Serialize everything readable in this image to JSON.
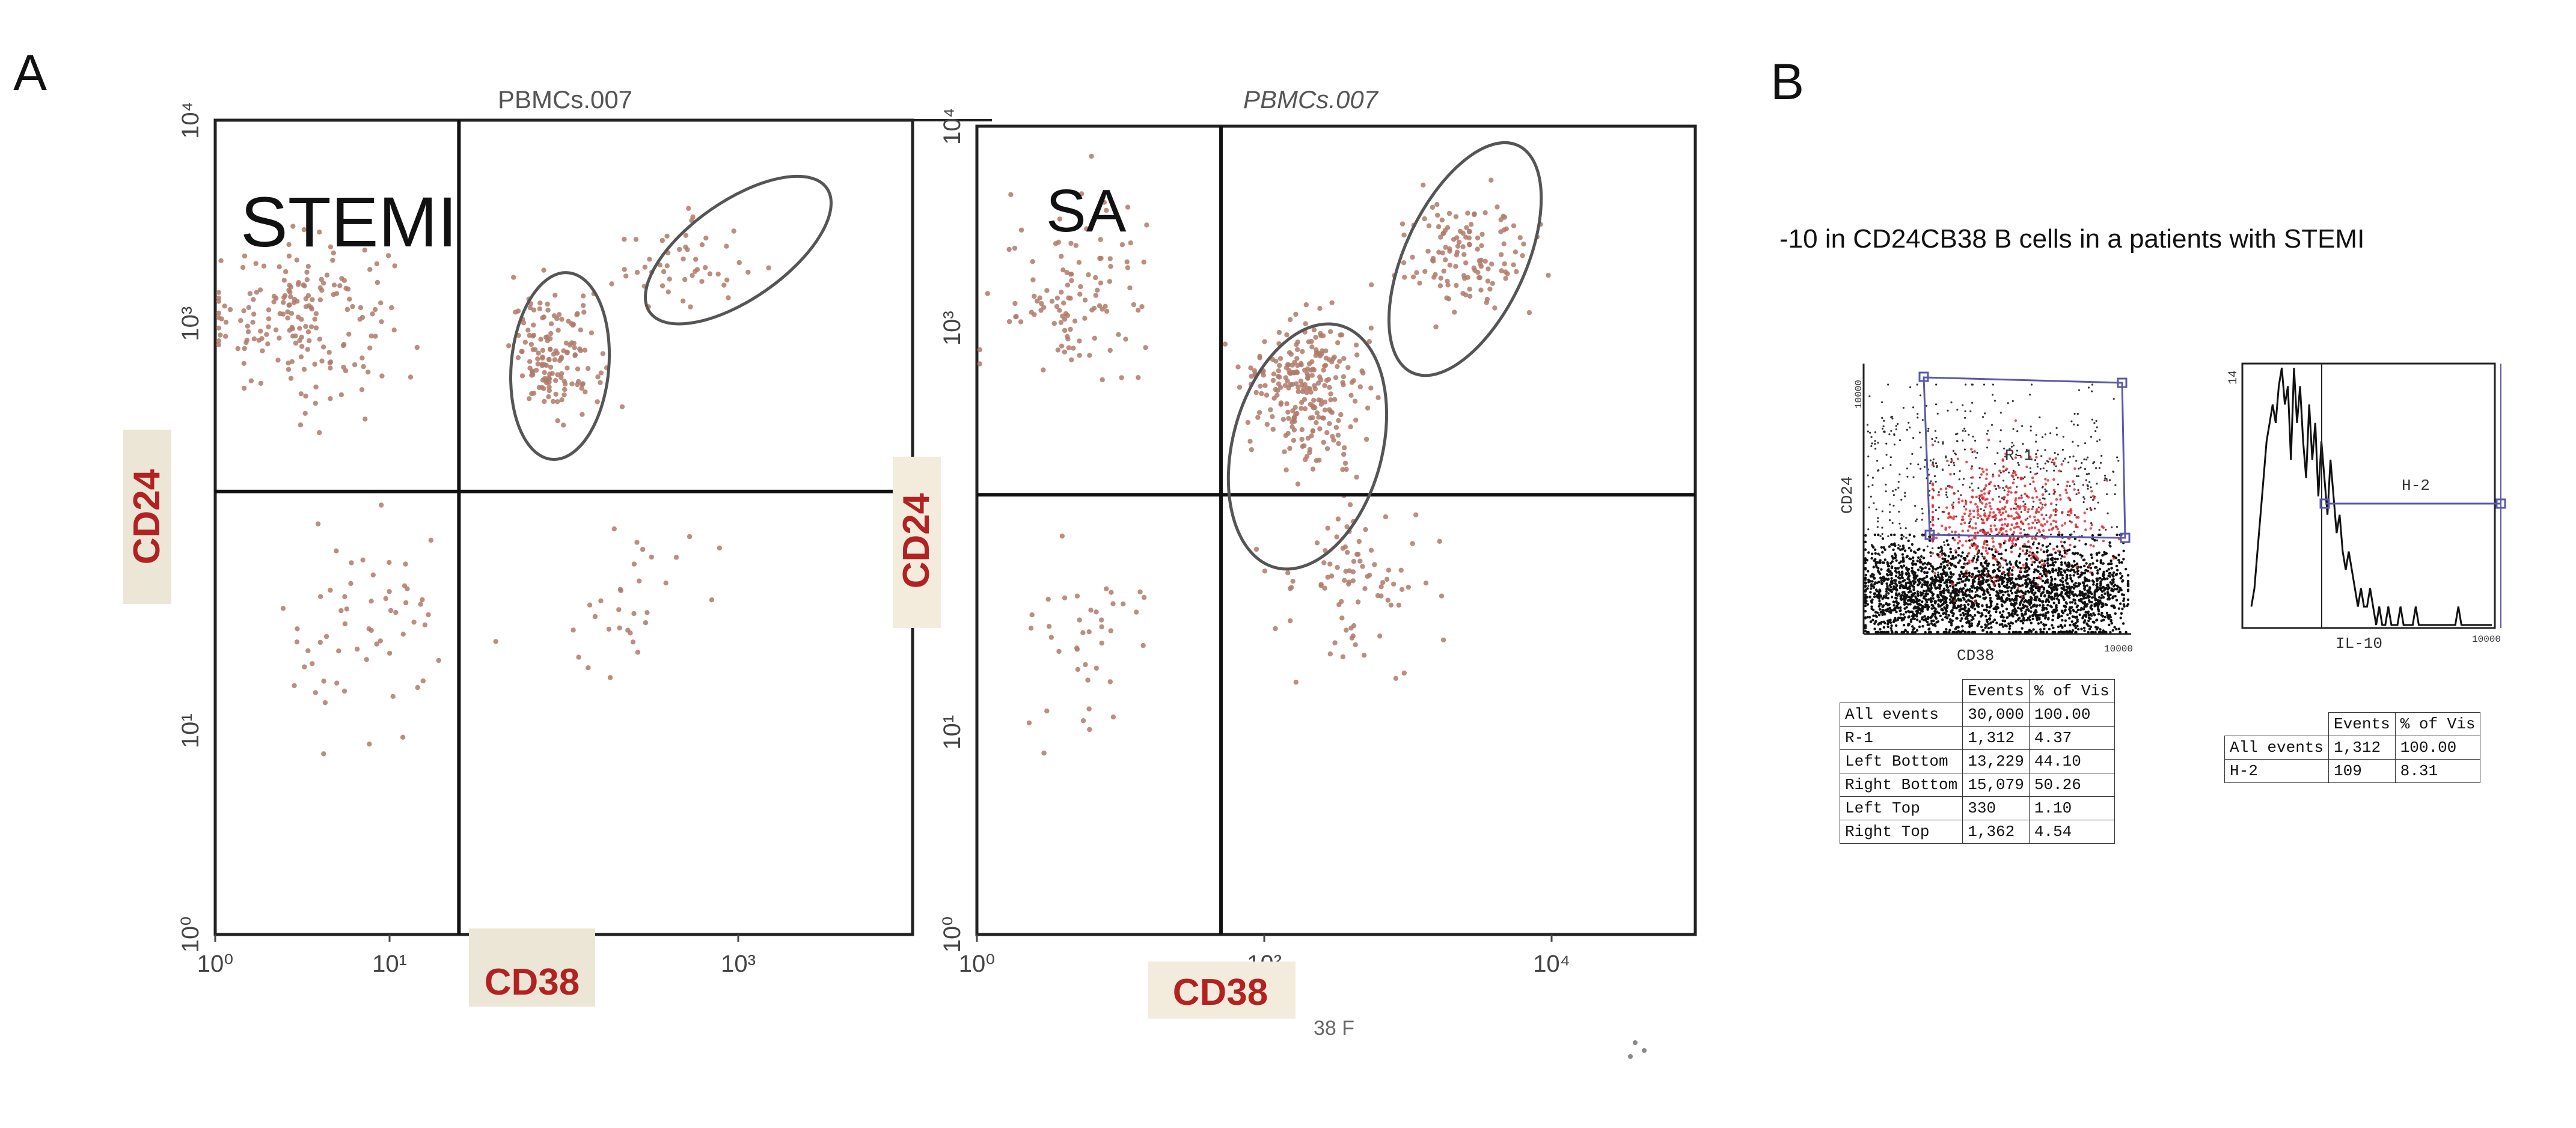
{
  "panel_labels": {
    "a": "A",
    "b": "B"
  },
  "panel_b_caption": "-10 in CD24CB38 B cells in a patients with STEMI",
  "chart_data": [
    {
      "id": "stemi",
      "type": "scatter",
      "title": "PBMCs.007",
      "group_label": "STEMI",
      "xlabel": "CD38",
      "ylabel": "CD24",
      "axis_color": "#b22222",
      "xscale": "log",
      "yscale": "log",
      "xlim": [
        1,
        10000
      ],
      "ylim": [
        1,
        10000
      ],
      "xticks": [
        "10⁰",
        "10¹",
        "10³"
      ],
      "yticks": [
        "10⁰",
        "10¹",
        "10³",
        "10⁴"
      ],
      "gates": {
        "x": 25,
        "y": 150
      },
      "populations": [
        {
          "name": "UL",
          "cx": 3,
          "cy": 1100,
          "sx": 3,
          "sy": 2.2,
          "n": 190
        },
        {
          "name": "gate1",
          "cx": 90,
          "cy": 700,
          "sx": 1.7,
          "sy": 1.8,
          "n": 150
        },
        {
          "name": "gate2",
          "cx": 450,
          "cy": 1900,
          "sx": 2.2,
          "sy": 1.6,
          "n": 50
        },
        {
          "name": "low",
          "cx": 8,
          "cy": 30,
          "sx": 3,
          "sy": 3,
          "n": 60
        },
        {
          "name": "lowR",
          "cx": 200,
          "cy": 40,
          "sx": 2.5,
          "sy": 3,
          "n": 30
        }
      ],
      "ellipses": [
        {
          "cx": 95,
          "cy": 620,
          "rx": 0.28,
          "ry": 0.46,
          "rot": 5
        },
        {
          "cx": 1000,
          "cy": 2300,
          "rx": 0.62,
          "ry": 0.24,
          "rot": -35
        }
      ]
    },
    {
      "id": "sa",
      "type": "scatter",
      "title": "PBMCs.007",
      "group_label": "SA",
      "xlabel": "CD38",
      "ylabel": "CD24",
      "x_sublabel": "38 F",
      "axis_color": "#b22222",
      "xscale": "log",
      "yscale": "log",
      "xlim": [
        1,
        100000
      ],
      "ylim": [
        1,
        10000
      ],
      "xticks": [
        "10⁰",
        "10²",
        "10⁴"
      ],
      "yticks": [
        "10⁰",
        "10¹",
        "10³",
        "10⁴"
      ],
      "gates": {
        "x": 50,
        "y": 150
      },
      "populations": [
        {
          "name": "UL",
          "cx": 5,
          "cy": 1500,
          "sx": 3.2,
          "sy": 2.5,
          "n": 110
        },
        {
          "name": "gate1",
          "cx": 200,
          "cy": 500,
          "sx": 2.2,
          "sy": 2.0,
          "n": 250
        },
        {
          "name": "gate2",
          "cx": 2200,
          "cy": 2300,
          "sx": 2.4,
          "sy": 1.8,
          "n": 130
        },
        {
          "name": "LR",
          "cx": 400,
          "cy": 60,
          "sx": 3,
          "sy": 2.5,
          "n": 90
        },
        {
          "name": "LL",
          "cx": 6,
          "cy": 25,
          "sx": 3,
          "sy": 3,
          "n": 40
        }
      ],
      "ellipses": [
        {
          "cx": 200,
          "cy": 260,
          "rx": 0.52,
          "ry": 0.62,
          "rot": 15
        },
        {
          "cx": 2500,
          "cy": 2200,
          "rx": 0.42,
          "ry": 0.62,
          "rot": 25
        }
      ]
    },
    {
      "id": "b_dot",
      "type": "scatter",
      "title": "",
      "xlabel": "CD38",
      "ylabel": "CD24",
      "gate_label": "R-1",
      "x_end_tick": "10000",
      "y_end_tick": "10000",
      "region_color": "#e0202a"
    },
    {
      "id": "b_hist",
      "type": "line",
      "xlabel": "IL-10",
      "y_max_tick": "14",
      "x_end_tick": "10000",
      "gate_label": "H-2",
      "values": [
        1,
        2,
        4,
        6,
        8,
        10,
        11,
        12,
        11,
        13,
        14,
        12,
        13,
        9,
        14,
        11,
        13,
        10,
        8,
        12,
        9,
        11,
        7,
        10,
        8,
        6,
        9,
        7,
        5,
        6,
        4,
        3,
        4,
        3,
        2,
        1,
        2,
        1,
        1,
        2,
        1,
        0,
        1,
        0,
        0,
        1,
        0,
        0,
        0,
        1,
        0,
        0,
        0,
        0,
        1,
        0,
        0,
        0,
        0,
        0,
        0,
        0,
        0,
        0,
        0,
        0,
        0,
        0,
        1,
        0,
        0,
        0,
        0,
        0,
        0,
        0,
        0,
        0,
        0,
        0
      ]
    }
  ],
  "stats_a": {
    "headers": [
      "",
      "Events",
      "% of Vis"
    ],
    "rows": [
      [
        "All events",
        "30,000",
        "100.00"
      ],
      [
        "R-1",
        "1,312",
        "4.37"
      ],
      [
        "Left Bottom",
        "13,229",
        "44.10"
      ],
      [
        "Right Bottom",
        "15,079",
        "50.26"
      ],
      [
        "Left Top",
        "330",
        "1.10"
      ],
      [
        "Right Top",
        "1,362",
        "4.54"
      ]
    ]
  },
  "stats_b": {
    "headers": [
      "",
      "Events",
      "% of Vis"
    ],
    "rows": [
      [
        "All events",
        "1,312",
        "100.00"
      ],
      [
        "H-2",
        "109",
        "8.31"
      ]
    ]
  }
}
